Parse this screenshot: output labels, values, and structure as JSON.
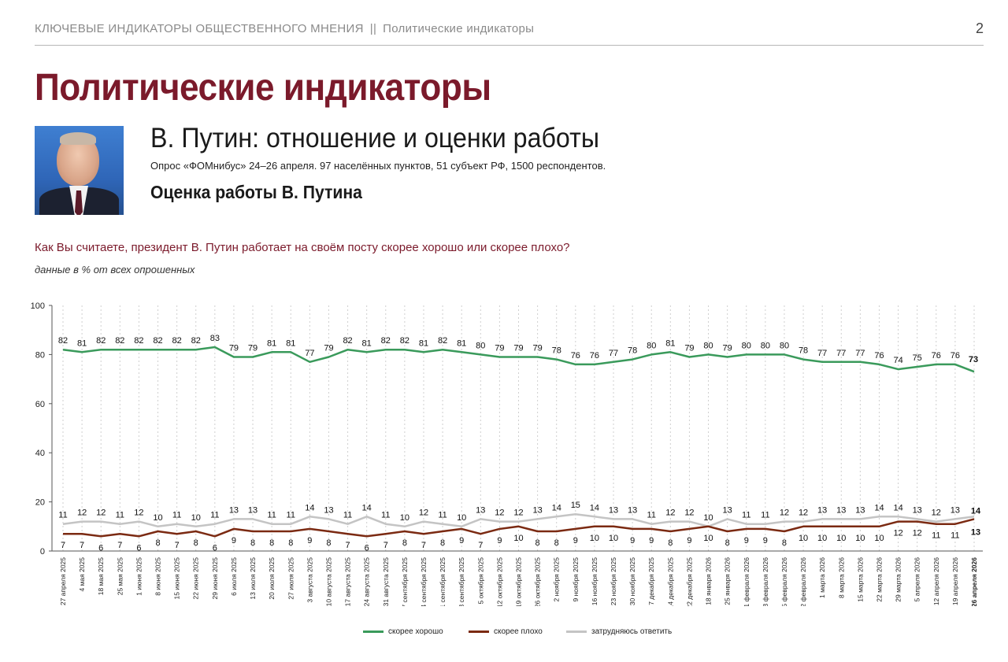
{
  "header": {
    "left_title": "КЛЮЧЕВЫЕ ИНДИКАТОРЫ ОБЩЕСТВЕННОГО МНЕНИЯ",
    "separator": "||",
    "left_subtitle": "Политические индикаторы",
    "page_number": "2"
  },
  "main_title": "Политические индикаторы",
  "subtitle": "В. Путин: отношение и оценки работы",
  "survey_info": "Опрос «ФОМнибус» 24–26 апреля. 97 населённых пунктов, 51 субъект РФ, 1500 респондентов.",
  "section_title": "Оценка работы В. Путина",
  "question": "Как Вы считаете, президент В. Путин работает на своём посту скорее хорошо или скорее плохо?",
  "units_note": "данные в % от всех опрошенных",
  "colors": {
    "good": "#3a9a5b",
    "bad": "#7b2a12",
    "unsure": "#c4c4c4",
    "title": "#7b1a2b"
  },
  "chart_data": {
    "type": "line",
    "ylim": [
      0,
      100
    ],
    "yticks": [
      0,
      20,
      40,
      60,
      80,
      100
    ],
    "grid": "vertical dotted",
    "legend_position": "bottom-center",
    "x": [
      "27 апреля 2025",
      "4 мая 2025",
      "18 мая 2025",
      "25 мая 2025",
      "1 июня 2025",
      "8 июня 2025",
      "15 июня 2025",
      "22 июня 2025",
      "29 июня 2025",
      "6 июля 2025",
      "13 июля 2025",
      "20 июля 2025",
      "27 июля 2025",
      "3 августа 2025",
      "10 августа 2025",
      "17 августа 2025",
      "24 августа 2025",
      "31 августа 2025",
      "7 сентября 2025",
      "14 сентября 2025",
      "21 сентября 2025",
      "28 сентября 2025",
      "5 октября 2025",
      "12 октября 2025",
      "19 октября 2025",
      "26 октября 2025",
      "2 ноября 2025",
      "9 ноября 2025",
      "16 ноября 2025",
      "23 ноября 2025",
      "30 ноября 2025",
      "7 декабря 2025",
      "14 декабря 2025",
      "22 декабря 2025",
      "18 января 2026",
      "25 января 2026",
      "1 февраля 2026",
      "8 февраля 2026",
      "15 февраля 2026",
      "22 февраля 2026",
      "1 марта 2026",
      "8 марта 2026",
      "15 марта 2026",
      "22 марта 2026",
      "29 марта 2026",
      "5 апреля 2026",
      "12 апреля 2026",
      "19 апреля 2026",
      "26 апреля 2026"
    ],
    "series": [
      {
        "name": "скорее хорошо",
        "color": "#3a9a5b",
        "values": [
          82,
          81,
          82,
          82,
          82,
          82,
          82,
          82,
          83,
          79,
          79,
          81,
          81,
          77,
          79,
          82,
          81,
          82,
          82,
          81,
          82,
          81,
          80,
          79,
          79,
          79,
          78,
          76,
          76,
          77,
          78,
          80,
          81,
          79,
          80,
          79,
          80,
          80,
          80,
          78,
          77,
          77,
          77,
          76,
          74,
          75,
          76,
          76,
          73
        ]
      },
      {
        "name": "скорее плохо",
        "color": "#7b2a12",
        "values": [
          7,
          7,
          6,
          7,
          6,
          8,
          7,
          8,
          6,
          9,
          8,
          8,
          8,
          9,
          8,
          7,
          6,
          7,
          8,
          7,
          8,
          9,
          7,
          9,
          10,
          8,
          8,
          9,
          10,
          10,
          9,
          9,
          8,
          9,
          10,
          8,
          9,
          9,
          8,
          10,
          10,
          10,
          10,
          10,
          12,
          12,
          11,
          11,
          13
        ]
      },
      {
        "name": "затрудняюсь ответить",
        "color": "#c4c4c4",
        "values": [
          11,
          12,
          12,
          11,
          12,
          10,
          11,
          10,
          11,
          13,
          13,
          11,
          11,
          14,
          13,
          11,
          14,
          11,
          10,
          12,
          11,
          10,
          13,
          12,
          12,
          13,
          14,
          15,
          14,
          13,
          13,
          11,
          12,
          12,
          10,
          13,
          11,
          11,
          12,
          12,
          13,
          13,
          13,
          14,
          14,
          13,
          12,
          13,
          14
        ]
      }
    ]
  }
}
